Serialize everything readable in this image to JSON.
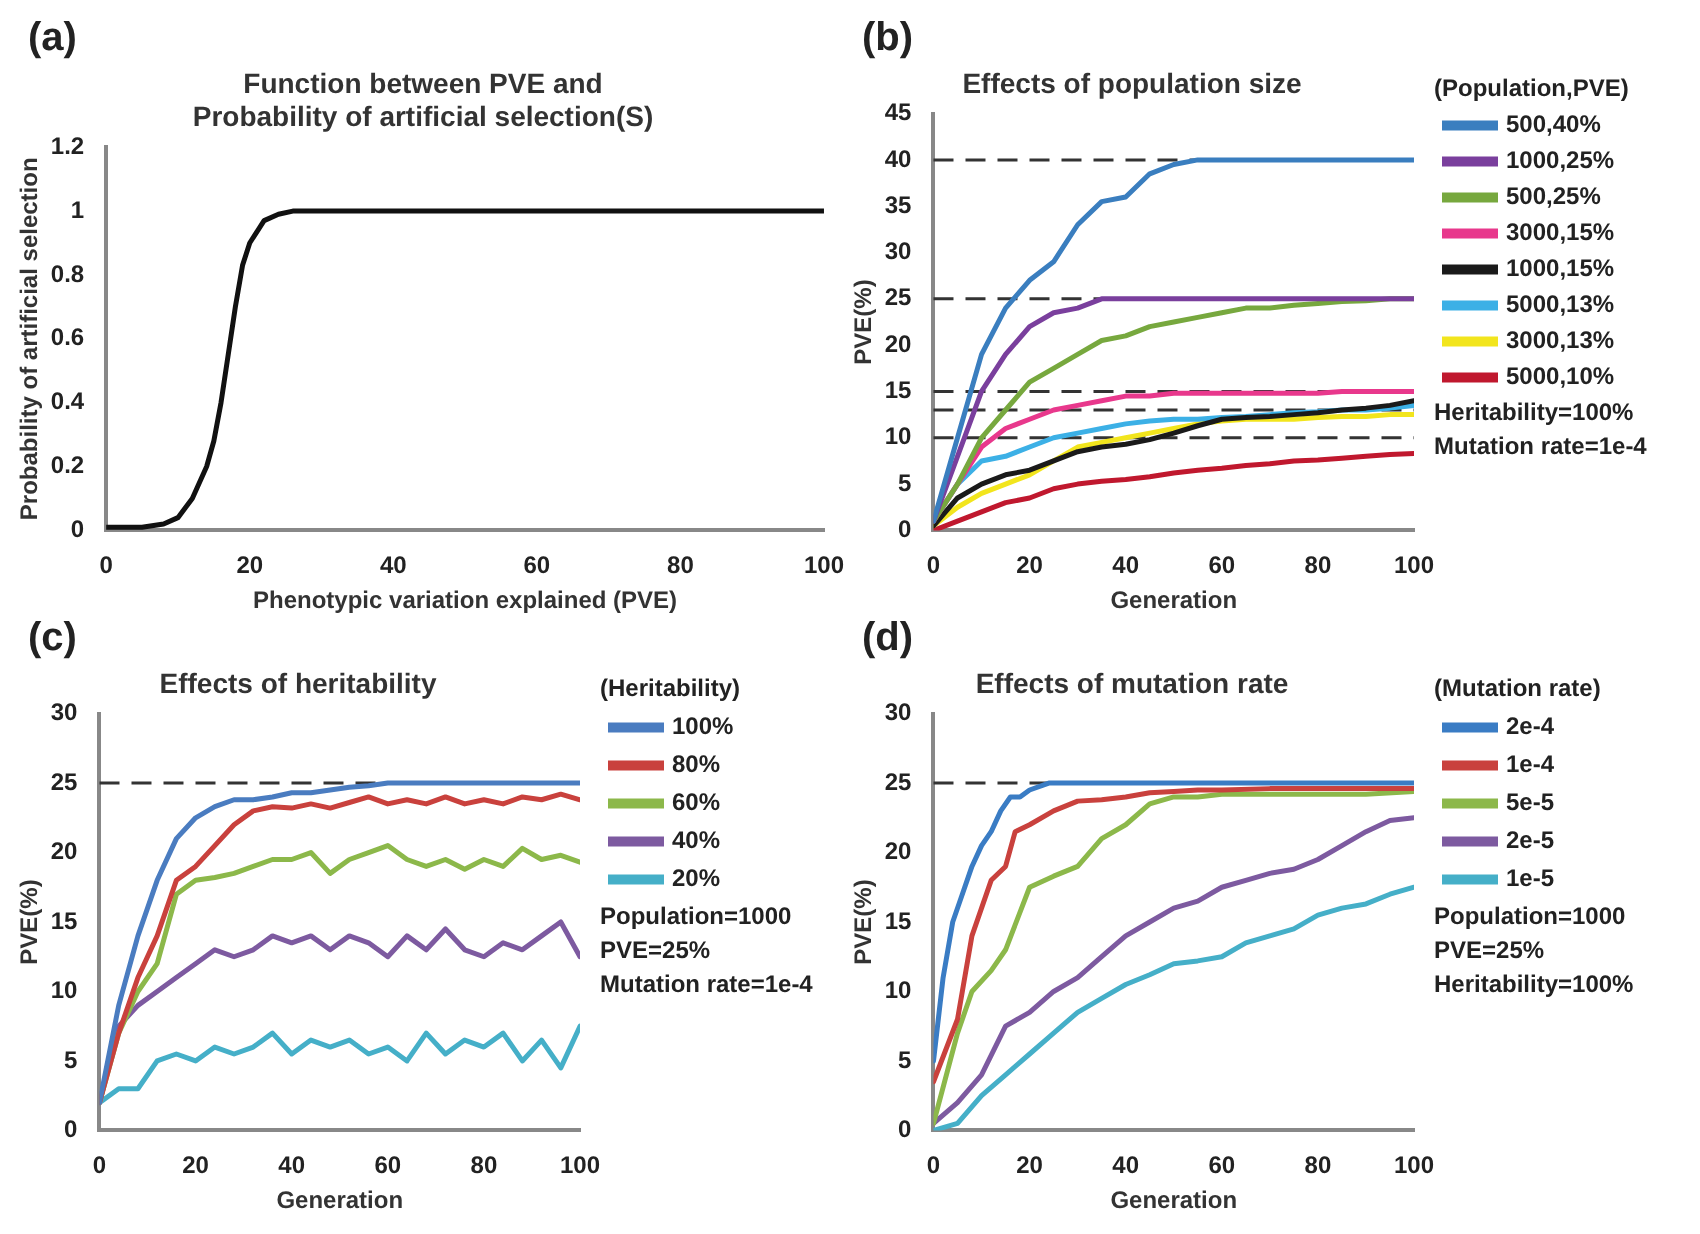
{
  "chart_data": [
    {
      "type": "line",
      "title": "Function between PVE and\nProbability of artificial selection(S)",
      "xlabel": "Phenotypic variation explained (PVE)",
      "ylabel": "Probability of artificial selection",
      "annotations": [
        "(a)"
      ],
      "xlim": [
        0,
        100
      ],
      "xticks": [
        0,
        20,
        40,
        60,
        80,
        100
      ],
      "ylim": [
        0,
        1.2
      ],
      "yticks": [
        0,
        0.2,
        0.4,
        0.6,
        0.8,
        1,
        1.2
      ],
      "grid": false,
      "legend": false,
      "marker": "none",
      "line_style": "solid",
      "series": [
        {
          "color": "#111111",
          "x": [
            0,
            5,
            8,
            10,
            12,
            14,
            15,
            16,
            17,
            18,
            19,
            20,
            22,
            24,
            26,
            30,
            100
          ],
          "values": [
            0.01,
            0.01,
            0.02,
            0.04,
            0.1,
            0.2,
            0.28,
            0.4,
            0.55,
            0.7,
            0.83,
            0.9,
            0.97,
            0.99,
            1,
            1,
            1
          ]
        }
      ]
    },
    {
      "type": "line",
      "title": "Effects of population size",
      "xlabel": "Generation",
      "ylabel": "PVE(%)",
      "legend_title": "(Population,PVE)",
      "annotations": [
        "(b)",
        "Heritability=100%",
        "Mutation rate=1e-4"
      ],
      "xlim": [
        0,
        100
      ],
      "xticks": [
        0,
        20,
        40,
        60,
        80,
        100
      ],
      "ylim": [
        0,
        45
      ],
      "yticks": [
        0,
        5,
        10,
        15,
        20,
        25,
        30,
        35,
        40,
        45
      ],
      "grid": false,
      "legend": "right",
      "marker": "none",
      "line_style": "solid",
      "x": [
        0,
        5,
        10,
        15,
        20,
        25,
        30,
        35,
        40,
        45,
        50,
        55,
        60,
        65,
        70,
        75,
        80,
        85,
        90,
        95,
        100
      ],
      "ref_lines": [
        {
          "axis": "y",
          "value": 40,
          "color": "#333333",
          "line_style": "dashed"
        },
        {
          "axis": "y",
          "value": 25,
          "color": "#333333",
          "line_style": "dashed"
        },
        {
          "axis": "y",
          "value": 15,
          "color": "#333333",
          "line_style": "dashed"
        },
        {
          "axis": "y",
          "value": 13,
          "color": "#333333",
          "line_style": "dashed"
        },
        {
          "axis": "y",
          "value": 10,
          "color": "#333333",
          "line_style": "dashed"
        }
      ],
      "series": [
        {
          "name": "500,40%",
          "color": "#3a7ebf",
          "values": [
            1,
            10,
            19,
            24,
            27,
            29,
            33,
            35.5,
            36,
            38.5,
            39.5,
            40,
            40,
            40,
            40,
            40,
            40,
            40,
            40,
            40,
            40
          ]
        },
        {
          "name": "1000,25%",
          "color": "#7a3f9d",
          "values": [
            1,
            8,
            15,
            19,
            22,
            23.5,
            24,
            25,
            25,
            25,
            25,
            25,
            25,
            25,
            25,
            25,
            25,
            25,
            25,
            25,
            25
          ]
        },
        {
          "name": "500,25%",
          "color": "#77a83e",
          "values": [
            1,
            5,
            10,
            13,
            16,
            17.5,
            19,
            20.5,
            21,
            22,
            22.5,
            23,
            23.5,
            24,
            24,
            24.3,
            24.5,
            24.7,
            24.8,
            25,
            25
          ]
        },
        {
          "name": "3000,15%",
          "color": "#e8388c",
          "values": [
            1,
            5,
            9,
            11,
            12,
            13,
            13.5,
            14,
            14.5,
            14.5,
            14.8,
            14.8,
            14.8,
            14.8,
            14.8,
            14.8,
            14.8,
            15,
            15,
            15,
            15
          ]
        },
        {
          "name": "1000,15%",
          "color": "#1a1a1a",
          "values": [
            0.5,
            3.5,
            5,
            6,
            6.5,
            7.5,
            8.5,
            9,
            9.3,
            9.8,
            10.5,
            11.3,
            12,
            12.2,
            12.3,
            12.5,
            12.7,
            13,
            13.2,
            13.5,
            14
          ]
        },
        {
          "name": "5000,13%",
          "color": "#3cb0e6",
          "values": [
            1,
            5,
            7.5,
            8,
            9,
            10,
            10.5,
            11,
            11.5,
            11.8,
            12,
            12,
            12.2,
            12.3,
            12.5,
            12.7,
            12.8,
            13,
            13,
            13.2,
            13.5
          ]
        },
        {
          "name": "3000,13%",
          "color": "#f2e51d",
          "values": [
            0.5,
            2.5,
            4,
            5,
            6,
            7.5,
            9,
            9.5,
            10,
            10.5,
            11,
            11.5,
            11.8,
            12,
            12,
            12,
            12.2,
            12.3,
            12.3,
            12.5,
            12.5
          ]
        },
        {
          "name": "5000,10%",
          "color": "#c0182e",
          "values": [
            0,
            1,
            2,
            3,
            3.5,
            4.5,
            5,
            5.3,
            5.5,
            5.8,
            6.2,
            6.5,
            6.7,
            7,
            7.2,
            7.5,
            7.6,
            7.8,
            8,
            8.2,
            8.3
          ]
        }
      ]
    },
    {
      "type": "line",
      "title": "Effects of heritability",
      "xlabel": "Generation",
      "ylabel": "PVE(%)",
      "legend_title": "(Heritability)",
      "annotations": [
        "(c)",
        "Population=1000",
        "PVE=25%",
        "Mutation rate=1e-4"
      ],
      "xlim": [
        0,
        100
      ],
      "xticks": [
        0,
        20,
        40,
        60,
        80,
        100
      ],
      "ylim": [
        0,
        30
      ],
      "yticks": [
        0,
        5,
        10,
        15,
        20,
        25,
        30
      ],
      "grid": false,
      "legend": "right",
      "marker": "none",
      "line_style": "solid",
      "x": [
        0,
        4,
        8,
        12,
        16,
        20,
        24,
        28,
        32,
        36,
        40,
        44,
        48,
        52,
        56,
        60,
        64,
        68,
        72,
        76,
        80,
        84,
        88,
        92,
        96,
        100
      ],
      "ref_lines": [
        {
          "axis": "y",
          "value": 25,
          "color": "#333333",
          "line_style": "dashed"
        }
      ],
      "series": [
        {
          "name": "100%",
          "color": "#4a7cc0",
          "values": [
            2,
            9,
            14,
            18,
            21,
            22.5,
            23.3,
            23.8,
            23.8,
            24,
            24.3,
            24.3,
            24.5,
            24.7,
            24.8,
            25,
            25,
            25,
            25,
            25,
            25,
            25,
            25,
            25,
            25,
            25
          ]
        },
        {
          "name": "80%",
          "color": "#c9413d",
          "values": [
            2,
            7,
            11,
            14,
            18,
            19,
            20.5,
            22,
            23,
            23.3,
            23.2,
            23.5,
            23.2,
            23.6,
            24,
            23.5,
            23.8,
            23.5,
            24,
            23.5,
            23.8,
            23.5,
            24,
            23.8,
            24.2,
            23.8
          ]
        },
        {
          "name": "60%",
          "color": "#8cb84a",
          "values": [
            2,
            7,
            10,
            12,
            17,
            18,
            18.2,
            18.5,
            19,
            19.5,
            19.5,
            20,
            18.5,
            19.5,
            20,
            20.5,
            19.5,
            19,
            19.5,
            18.8,
            19.5,
            19,
            20.3,
            19.5,
            19.8,
            19.3
          ]
        },
        {
          "name": "40%",
          "color": "#7d5aa0",
          "values": [
            2,
            7.5,
            9,
            10,
            11,
            12,
            13,
            12.5,
            13,
            14,
            13.5,
            14,
            13,
            14,
            13.5,
            12.5,
            14,
            13,
            14.5,
            13,
            12.5,
            13.5,
            13,
            14,
            15,
            12.5
          ]
        },
        {
          "name": "20%",
          "color": "#45afc8",
          "values": [
            2,
            3,
            3,
            5,
            5.5,
            5,
            6,
            5.5,
            6,
            7,
            5.5,
            6.5,
            6,
            6.5,
            5.5,
            6,
            5,
            7,
            5.5,
            6.5,
            6,
            7,
            5,
            6.5,
            4.5,
            7.5
          ]
        }
      ]
    },
    {
      "type": "line",
      "title": "Effects of mutation rate",
      "xlabel": "Generation",
      "ylabel": "PVE(%)",
      "legend_title": "(Mutation rate)",
      "annotations": [
        "(d)",
        "Population=1000",
        "PVE=25%",
        "Heritability=100%"
      ],
      "xlim": [
        0,
        100
      ],
      "xticks": [
        0,
        20,
        40,
        60,
        80,
        100
      ],
      "ylim": [
        0,
        30
      ],
      "yticks": [
        0,
        5,
        10,
        15,
        20,
        25,
        30
      ],
      "grid": false,
      "legend": "right",
      "marker": "none",
      "line_style": "solid",
      "ref_lines": [
        {
          "axis": "y",
          "value": 25,
          "color": "#333333",
          "line_style": "dashed"
        }
      ],
      "series": [
        {
          "name": "2e-4",
          "color": "#3a7cc4",
          "x": [
            0,
            2,
            4,
            6,
            8,
            10,
            12,
            14,
            16,
            18,
            20,
            24,
            30,
            40,
            50,
            60,
            70,
            80,
            90,
            100
          ],
          "values": [
            5,
            11,
            15,
            17,
            19,
            20.5,
            21.5,
            23,
            24,
            24,
            24.5,
            25,
            25,
            25,
            25,
            25,
            25,
            25,
            25,
            25
          ]
        },
        {
          "name": "1e-4",
          "color": "#c9413d",
          "x": [
            0,
            5,
            8,
            10,
            12,
            15,
            17,
            20,
            25,
            30,
            35,
            40,
            45,
            50,
            55,
            60,
            70,
            80,
            90,
            100
          ],
          "values": [
            3.5,
            8,
            14,
            16,
            18,
            19,
            21.5,
            22,
            23,
            23.7,
            23.8,
            24,
            24.3,
            24.4,
            24.5,
            24.5,
            24.6,
            24.6,
            24.6,
            24.6
          ]
        },
        {
          "name": "5e-5",
          "color": "#8cb84a",
          "x": [
            0,
            5,
            8,
            12,
            15,
            20,
            25,
            30,
            35,
            40,
            45,
            50,
            55,
            60,
            70,
            80,
            90,
            100
          ],
          "values": [
            0.5,
            7,
            10,
            11.5,
            13,
            17.5,
            18.3,
            19,
            21,
            22,
            23.5,
            24,
            24,
            24.2,
            24.2,
            24.2,
            24.2,
            24.4
          ]
        },
        {
          "name": "2e-5",
          "color": "#7d5aa0",
          "x": [
            0,
            5,
            10,
            15,
            20,
            25,
            30,
            35,
            40,
            45,
            50,
            55,
            60,
            65,
            70,
            75,
            80,
            85,
            90,
            95,
            100
          ],
          "values": [
            0.5,
            2,
            4,
            7.5,
            8.5,
            10,
            11,
            12.5,
            14,
            15,
            16,
            16.5,
            17.5,
            18,
            18.5,
            18.8,
            19.5,
            20.5,
            21.5,
            22.3,
            22.5
          ]
        },
        {
          "name": "1e-5",
          "color": "#45afc8",
          "x": [
            0,
            5,
            10,
            15,
            20,
            25,
            30,
            35,
            40,
            45,
            50,
            55,
            60,
            65,
            70,
            75,
            80,
            85,
            90,
            95,
            100
          ],
          "values": [
            0,
            0.5,
            2.5,
            4,
            5.5,
            7,
            8.5,
            9.5,
            10.5,
            11.2,
            12,
            12.2,
            12.5,
            13.5,
            14,
            14.5,
            15.5,
            16,
            16.3,
            17,
            17.5
          ]
        }
      ]
    }
  ]
}
